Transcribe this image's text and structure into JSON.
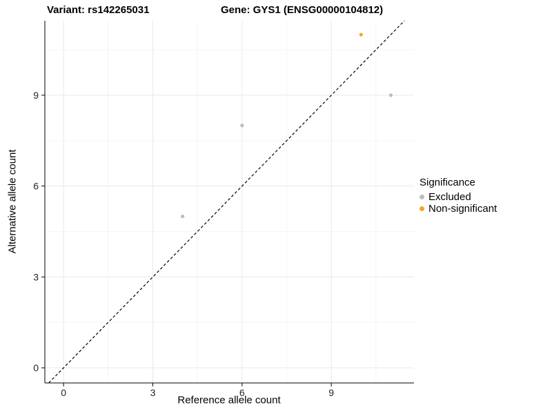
{
  "titles": {
    "variant": "Variant: rs142265031",
    "gene": "Gene: GYS1 (ENSG00000104812)"
  },
  "axes": {
    "x_label": "Reference allele count",
    "y_label": "Alternative allele count"
  },
  "legend": {
    "title": "Significance",
    "items": [
      {
        "label": "Excluded",
        "color": "#BDBDBD"
      },
      {
        "label": "Non-significant",
        "color": "#F5A623"
      }
    ]
  },
  "chart_data": {
    "type": "scatter",
    "title": "Variant: rs142265031 — Gene: GYS1 (ENSG00000104812)",
    "xlabel": "Reference allele count",
    "ylabel": "Alternative allele count",
    "xlim": [
      -0.63,
      11.78
    ],
    "ylim": [
      -0.5,
      11.46
    ],
    "x_ticks": [
      0,
      3,
      6,
      9
    ],
    "y_ticks": [
      0,
      3,
      6,
      9
    ],
    "minor_ticks_x": [
      1.5,
      4.5,
      7.5,
      10.5
    ],
    "minor_ticks_y": [
      1.5,
      4.5,
      7.5,
      10.5
    ],
    "grid": true,
    "identity_line": {
      "style": "dashed",
      "color": "#000000",
      "slope": 1,
      "intercept": 0
    },
    "legend_position": "right",
    "series": [
      {
        "name": "Excluded",
        "color": "#BDBDBD",
        "points": [
          [
            4,
            5
          ],
          [
            6,
            8
          ],
          [
            11,
            9
          ]
        ]
      },
      {
        "name": "Non-significant",
        "color": "#F5A623",
        "points": [
          [
            10,
            11
          ]
        ]
      }
    ]
  }
}
